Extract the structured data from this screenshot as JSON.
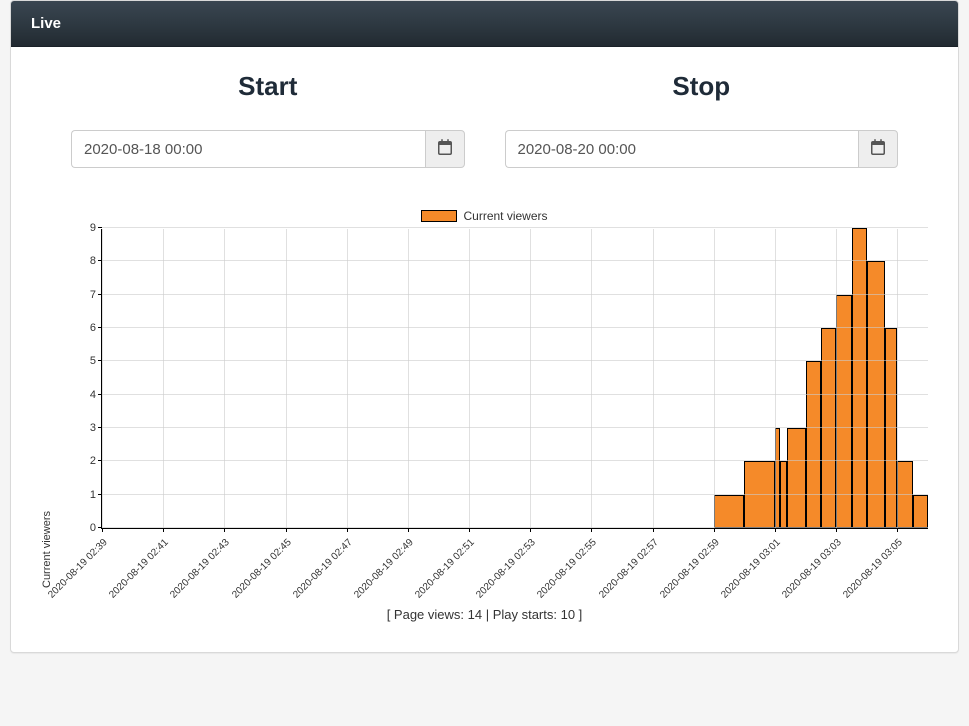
{
  "header": {
    "title": "Live"
  },
  "controls": {
    "start": {
      "label": "Start",
      "value": "2020-08-18 00:00"
    },
    "stop": {
      "label": "Stop",
      "value": "2020-08-20 00:00"
    }
  },
  "chart": {
    "type": "bar-step",
    "legend": {
      "label": "Current viewers",
      "swatch_color": "#f58a29",
      "swatch_border": "#000000"
    },
    "y_axis": {
      "title": "Current viewers",
      "min": 0,
      "max": 9,
      "tick_step": 1,
      "ticks": [
        0,
        1,
        2,
        3,
        4,
        5,
        6,
        7,
        8,
        9
      ]
    },
    "x_axis": {
      "min_index": 0,
      "max_index": 27,
      "tick_labels": [
        "2020-08-19 02:39",
        "2020-08-19 02:41",
        "2020-08-19 02:43",
        "2020-08-19 02:45",
        "2020-08-19 02:47",
        "2020-08-19 02:49",
        "2020-08-19 02:51",
        "2020-08-19 02:53",
        "2020-08-19 02:55",
        "2020-08-19 02:57",
        "2020-08-19 02:59",
        "2020-08-19 03:01",
        "2020-08-19 03:03",
        "2020-08-19 03:05"
      ],
      "tick_indices_minutes": [
        0,
        2,
        4,
        6,
        8,
        10,
        12,
        14,
        16,
        18,
        20,
        22,
        24,
        26
      ]
    },
    "series": {
      "color": "#f58a29",
      "border_color": "#000000",
      "data": [
        {
          "x0": 0,
          "x1": 20,
          "y": 0
        },
        {
          "x0": 20,
          "x1": 21,
          "y": 1
        },
        {
          "x0": 21,
          "x1": 22,
          "y": 2
        },
        {
          "x0": 22,
          "x1": 22.15,
          "y": 3
        },
        {
          "x0": 22.15,
          "x1": 22.4,
          "y": 2
        },
        {
          "x0": 22.4,
          "x1": 23,
          "y": 3
        },
        {
          "x0": 23,
          "x1": 23.5,
          "y": 5
        },
        {
          "x0": 23.5,
          "x1": 24,
          "y": 6
        },
        {
          "x0": 24,
          "x1": 24.5,
          "y": 7
        },
        {
          "x0": 24.5,
          "x1": 25,
          "y": 9
        },
        {
          "x0": 25,
          "x1": 25.6,
          "y": 8
        },
        {
          "x0": 25.6,
          "x1": 26,
          "y": 6
        },
        {
          "x0": 26,
          "x1": 26.5,
          "y": 2
        },
        {
          "x0": 26.5,
          "x1": 27,
          "y": 1
        }
      ]
    },
    "grid_color": "#cccccc",
    "background": "#ffffff",
    "footer": "[ Page views: 14 | Play starts: 10 ]"
  }
}
